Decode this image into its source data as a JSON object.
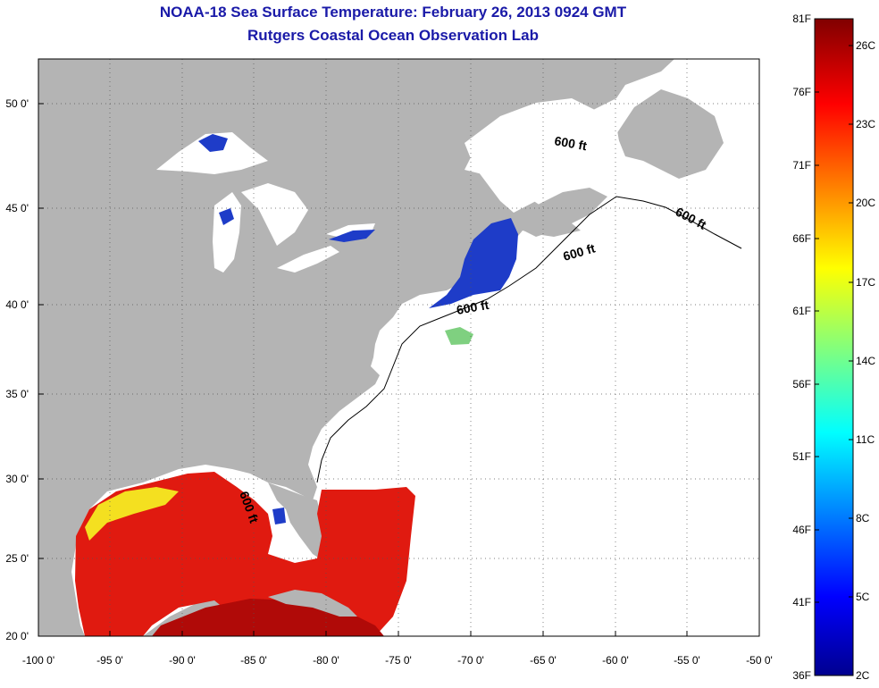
{
  "title_line1": "NOAA-18 Sea Surface Temperature:  February 26, 2013 0924 GMT",
  "title_line2": "Rutgers Coastal Ocean Observation Lab",
  "y_ticks": [
    "50 0'",
    "45 0'",
    "40 0'",
    "35 0'",
    "30 0'",
    "25 0'",
    "20 0'"
  ],
  "x_ticks": [
    "-100 0'",
    "-95 0'",
    "-90 0'",
    "-85 0'",
    "-80 0'",
    "-75 0'",
    "-70 0'",
    "-65 0'",
    "-60 0'",
    "-55 0'",
    "-50 0'"
  ],
  "isobath_label": "600 ft",
  "colorbar": {
    "f_labels": [
      "81F",
      "76F",
      "71F",
      "66F",
      "61F",
      "56F",
      "51F",
      "46F",
      "41F",
      "36F"
    ],
    "c_labels": [
      "26C",
      "23C",
      "20C",
      "17C",
      "14C",
      "11C",
      "8C",
      "5C",
      "2C"
    ],
    "colors": [
      "#00008f",
      "#0000ff",
      "#00ffff",
      "#ffff00",
      "#ff0000",
      "#800000"
    ]
  },
  "map_colors": {
    "land": "#b4b4b4",
    "ocean": "#ffffff",
    "warm_sst": "#e01a10",
    "cold_sst": "#1e3cc8",
    "lakes": "#ffffff"
  }
}
